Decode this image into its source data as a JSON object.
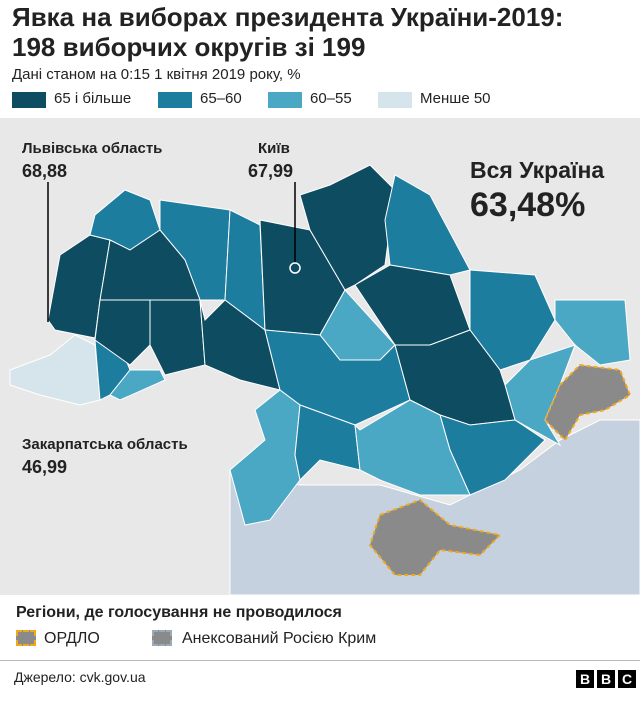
{
  "header": {
    "title_lines": [
      "Явка на виборах президента України-2019:",
      "198 виборчих округів зі 199"
    ],
    "subtitle": "Дані станом на 0:15 1 квітня 2019 року, %",
    "legend": [
      "65 і більше",
      "65–60",
      "60–55",
      "Менше 50"
    ]
  },
  "map": {
    "annotations": [
      {
        "label": "Львівська область",
        "value": "68,88"
      },
      {
        "label": "Київ",
        "value": "67,99"
      },
      {
        "label": "Закарпатська область",
        "value": "46,99"
      }
    ],
    "total": {
      "label": "Вся Україна",
      "value": "63,48%"
    }
  },
  "regions_legend": {
    "title": "Регіони, де голосування не проводилося",
    "items": [
      "ОРДЛО",
      "Анексований Росією Крим"
    ]
  },
  "footer": {
    "source": "Джерело: cvk.gov.ua",
    "logo": [
      "B",
      "B",
      "C"
    ]
  }
}
